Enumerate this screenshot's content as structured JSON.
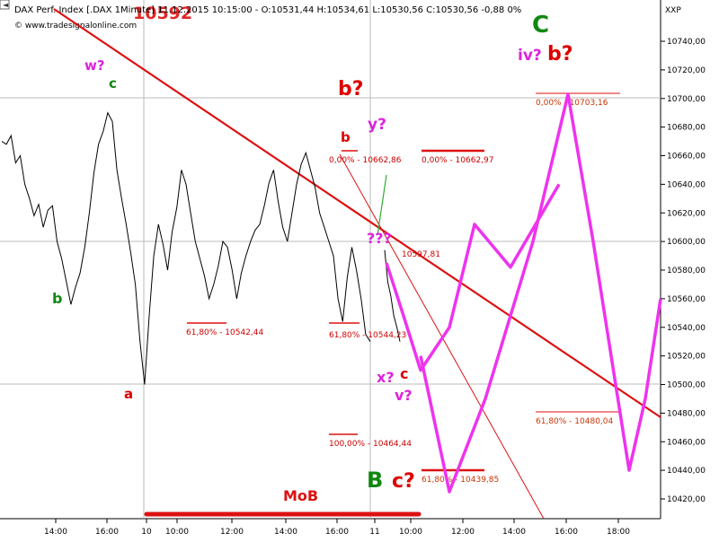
{
  "header": {
    "title": "DAX Perf. Index [.DAX  1Minute]  11.12.2015 10:15:00 - O:10531,44 H:10534,61 L:10530,56 C:10530,56 -0,88 0%",
    "watermark": "© www.tradesignalonline.com",
    "corner_label": "XXP"
  },
  "colors": {
    "price": "#000000",
    "trend": "#dd1111",
    "projection": "#ee33ee",
    "green": "#118811",
    "red": "#dd0000",
    "magenta": "#dd22dd",
    "fib": "#dd3300",
    "grid": "#bbbbbb"
  },
  "chart_data": {
    "type": "line",
    "ylim": [
      10400,
      10760
    ],
    "y_ticks": [
      "10420,00",
      "10440,00",
      "10460,00",
      "10480,00",
      "10500,00",
      "10520,00",
      "10540,00",
      "10560,00",
      "10580,00",
      "10600,00",
      "10620,00",
      "10640,00",
      "10660,00",
      "10680,00",
      "10700,00",
      "10720,00",
      "10740,00"
    ],
    "x_ticks": [
      "14:00",
      "16:00",
      "10",
      "10:00",
      "12:00",
      "14:00",
      "16:00",
      "11",
      "10:00",
      "12:00",
      "14:00",
      "16:00",
      "18:00"
    ],
    "series": [
      {
        "values": [
          10670,
          10668,
          10674,
          10655,
          10660,
          10640,
          10630,
          10618,
          10626,
          10610,
          10622,
          10625,
          10600,
          10588,
          10572,
          10556,
          10568,
          10578,
          10596,
          10620,
          10648,
          10668,
          10677,
          10690,
          10684,
          10650,
          10630,
          10612,
          10592,
          10570,
          10530,
          10500,
          10548,
          10590,
          10612,
          10598,
          10580,
          10607,
          10624,
          10650,
          10640,
          10620,
          10600,
          10588,
          10576,
          10560,
          10570,
          10583,
          10600,
          10596,
          10580,
          10560,
          10578,
          10590,
          10600,
          10608,
          10612,
          10625,
          10641,
          10650,
          10628,
          10610,
          10600,
          10620,
          10640,
          10654,
          10662,
          10650,
          10638,
          10620,
          10610,
          10600,
          10590,
          10560,
          10544,
          10575,
          10596,
          10580,
          10560,
          10535,
          10530
        ]
      },
      {
        "values": [
          10594,
          10572,
          10562,
          10548,
          10540,
          10530
        ]
      }
    ],
    "projection_path": [
      10585,
      10550,
      10510,
      10540,
      10580,
      10612,
      10582,
      10610,
      10640,
      10660,
      10703,
      10600,
      10540,
      10490,
      10440,
      10520,
      10560
    ]
  },
  "annotations": {
    "wave_a": "a",
    "wave_b_low": "b",
    "wave_c_high": "c",
    "wave_w": "w?",
    "wave_b_mid": "b",
    "wave_b_big": "b?",
    "wave_y": "y?",
    "wave_q": "???",
    "wave_x": "x?",
    "wave_c_small": "c",
    "wave_v": "v?",
    "wave_B": "B",
    "wave_c_big": "c?",
    "wave_C": "C",
    "wave_iv": "iv?",
    "wave_b_top": "b?",
    "mob": "MoB"
  },
  "fib_levels": [
    {
      "label": "0,00% - 10662,86"
    },
    {
      "label": "0,00% - 10662,97"
    },
    {
      "label": "0,00% - 10703,16"
    },
    {
      "label": "61,80% - 10542,44"
    },
    {
      "label": "61,80% - 10544,23"
    },
    {
      "label": "100,00% - 10464,44"
    },
    {
      "label": "61,80% - 10439,85"
    },
    {
      "label": "61,80% - 10480,04"
    },
    {
      "label": "10597,81"
    }
  ]
}
